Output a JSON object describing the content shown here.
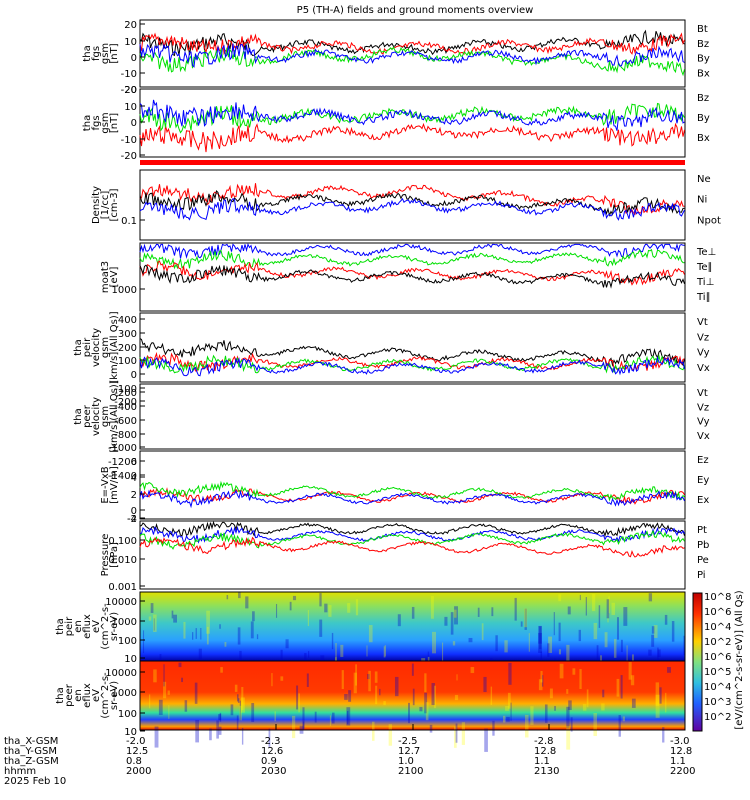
{
  "title": "P5 (TH-A) fields and ground moments overview",
  "colors": {
    "black": "#000000",
    "red": "#ff0000",
    "green": "#00e000",
    "blue": "#0000ff"
  },
  "panels": [
    {
      "id": "fgs",
      "ylabel": [
        "tha",
        "fgs",
        "gsm",
        "[nT]"
      ],
      "yticks": [
        "20",
        "10",
        "0",
        "-10",
        "-20"
      ],
      "legend": [
        {
          "text": "Bt",
          "color": "black"
        },
        {
          "text": "Bz",
          "color": "red"
        },
        {
          "text": "By",
          "color": "green"
        },
        {
          "text": "Bx",
          "color": "blue"
        }
      ]
    },
    {
      "id": "fgs_dsl",
      "ylabel": [
        "tha",
        "fgs",
        "gsm",
        "[nT]"
      ],
      "yticks": [
        "20",
        "10",
        "0",
        "-10",
        "-20"
      ],
      "legend": [
        {
          "text": "Bz",
          "color": "red"
        },
        {
          "text": "By",
          "color": "green"
        },
        {
          "text": "Bx",
          "color": "blue"
        }
      ]
    },
    {
      "id": "density",
      "ylabel": [
        "Density",
        "[1/cc]",
        "[cm-3]"
      ],
      "yticks": [
        "0.1"
      ],
      "legend": [
        {
          "text": "Ne",
          "color": "red"
        },
        {
          "text": "Ni",
          "color": "black"
        },
        {
          "text": "Npot",
          "color": "blue"
        }
      ]
    },
    {
      "id": "temp",
      "ylabel": [
        "moat3",
        "[eV]"
      ],
      "yticks": [
        "1000"
      ],
      "legend": [
        {
          "text": "Te⊥",
          "color": "red"
        },
        {
          "text": "Te∥",
          "color": "black"
        },
        {
          "text": "Ti⊥",
          "color": "blue"
        },
        {
          "text": "Ti∥",
          "color": "green"
        }
      ]
    },
    {
      "id": "vi",
      "ylabel": [
        "tha",
        "peir",
        "velocity",
        "gsm",
        "[km/s](All Qs)]"
      ],
      "yticks": [
        "400",
        "300",
        "200",
        "100",
        "0",
        "-100",
        "-200"
      ],
      "legend": [
        {
          "text": "Vt",
          "color": "black"
        },
        {
          "text": "Vz",
          "color": "red"
        },
        {
          "text": "Vy",
          "color": "green"
        },
        {
          "text": "Vx",
          "color": "blue"
        }
      ]
    },
    {
      "id": "ve",
      "ylabel": [
        "tha",
        "peer",
        "velocity",
        "gsm",
        "[km/s](All Qs)]"
      ],
      "yticks": [
        "-200",
        "-400",
        "-600",
        "-800",
        "-1000",
        "-1200",
        "-1400"
      ],
      "legend": [
        {
          "text": "Vt",
          "color": "black"
        },
        {
          "text": "Vz",
          "color": "red"
        },
        {
          "text": "Vy",
          "color": "green"
        },
        {
          "text": "Vx",
          "color": "blue"
        }
      ]
    },
    {
      "id": "efield",
      "ylabel": [
        "E=-VxB",
        "[mV/m]"
      ],
      "yticks": [
        "6",
        "4",
        "2",
        "0",
        "-2",
        "-4"
      ],
      "legend": [
        {
          "text": "Ez",
          "color": "red"
        },
        {
          "text": "Ey",
          "color": "green"
        },
        {
          "text": "Ex",
          "color": "blue"
        }
      ]
    },
    {
      "id": "pressure",
      "ylabel": [
        "Pressure",
        "[nPa]"
      ],
      "yticks": [
        "0.100",
        "0.010",
        "0.001"
      ],
      "legend": [
        {
          "text": "Pt",
          "color": "black"
        },
        {
          "text": "Pb",
          "color": "red"
        },
        {
          "text": "Pe",
          "color": "green"
        },
        {
          "text": "Pi",
          "color": "blue"
        }
      ]
    },
    {
      "id": "ion_spec",
      "ylabel": [
        "tha",
        "peir",
        "en",
        "eflux",
        "eV",
        "(cm^2-s-",
        "sr-eV)"
      ],
      "yticks": [
        "10000",
        "1000",
        "100",
        "10"
      ]
    },
    {
      "id": "el_spec",
      "ylabel": [
        "tha",
        "peer",
        "en",
        "eflux",
        "eV",
        "(cm^2-s-",
        "sr-eV)"
      ],
      "yticks": [
        "10000",
        "1000",
        "100",
        "10"
      ]
    }
  ],
  "colorbar": {
    "ticks": [
      "10^8",
      "10^6",
      "10^4",
      "10^2",
      "10^6",
      "10^5",
      "10^4",
      "10^3",
      "10^2"
    ],
    "label": "[eV/(cm^2-s-sr-eV)] (All Qs)"
  },
  "xaxis": {
    "rows": [
      {
        "label": "tha_X-GSM",
        "values": [
          "-2.0",
          "-2.3",
          "-2.5",
          "-2.8",
          "-3.0"
        ]
      },
      {
        "label": "tha_Y-GSM",
        "values": [
          "12.5",
          "12.6",
          "12.7",
          "12.8",
          "12.8"
        ]
      },
      {
        "label": "tha_Z-GSM",
        "values": [
          "0.8",
          "0.9",
          "1.0",
          "1.1",
          "1.1"
        ]
      },
      {
        "label": "hhmm",
        "values": [
          "2000",
          "2030",
          "2100",
          "2130",
          "2200"
        ]
      }
    ],
    "date": "2025 Feb 10"
  },
  "chart_data": {
    "type": "line",
    "title": "P5 (TH-A) fields and ground moments overview",
    "x": [
      "2000",
      "2030",
      "2100",
      "2130",
      "2200"
    ],
    "panels": [
      {
        "name": "fgs gsm",
        "ylim": [
          -25,
          25
        ],
        "series": [
          {
            "name": "Bt",
            "values": [
              15,
              14,
              11,
              10,
              8
            ]
          },
          {
            "name": "Bz",
            "values": [
              10,
              9,
              8,
              7,
              7
            ]
          },
          {
            "name": "By",
            "values": [
              -2,
              -3,
              2,
              -5,
              0
            ]
          },
          {
            "name": "Bx",
            "values": [
              3,
              2,
              1,
              0,
              -2
            ]
          }
        ]
      },
      {
        "name": "fgs gsm 2",
        "ylim": [
          -25,
          25
        ],
        "series": [
          {
            "name": "Bz",
            "values": [
              -5,
              -10,
              -6,
              -8,
              -12
            ]
          },
          {
            "name": "By",
            "values": [
              3,
              0,
              5,
              2,
              10
            ]
          },
          {
            "name": "Bx",
            "values": [
              6,
              5,
              3,
              4,
              3
            ]
          }
        ]
      },
      {
        "name": "Density",
        "series": [
          {
            "name": "Ne",
            "values": [
              0.18,
              0.14,
              0.22,
              0.2,
              0.16
            ]
          },
          {
            "name": "Ni",
            "values": [
              0.16,
              0.12,
              0.13,
              0.11,
              0.1
            ]
          },
          {
            "name": "Npot",
            "values": [
              0.12,
              0.09,
              0.1,
              0.08,
              0.12
            ]
          }
        ]
      },
      {
        "name": "moat3",
        "series": [
          {
            "name": "Te⊥",
            "values": [
              2000,
              1500,
              2300,
              2200,
              1800
            ]
          },
          {
            "name": "Te∥",
            "values": [
              1700,
              1400,
              2000,
              2000,
              1300
            ]
          },
          {
            "name": "Ti⊥",
            "values": [
              3400,
              3200,
              3600,
              3500,
              3300
            ]
          },
          {
            "name": "Ti∥",
            "values": [
              2800,
              2600,
              3100,
              3000,
              2900
            ]
          }
        ]
      },
      {
        "name": "peir velocity",
        "ylim": [
          -200,
          400
        ],
        "series": [
          {
            "name": "Vt",
            "values": [
              150,
              80,
              60,
              50,
              40
            ]
          },
          {
            "name": "Vz",
            "values": [
              40,
              10,
              0,
              -10,
              0
            ]
          },
          {
            "name": "Vy",
            "values": [
              20,
              30,
              10,
              0,
              20
            ]
          },
          {
            "name": "Vx",
            "values": [
              -20,
              -30,
              -10,
              0,
              -10
            ]
          }
        ]
      },
      {
        "name": "E=-VxB",
        "ylim": [
          -4,
          6
        ],
        "series": [
          {
            "name": "Ez",
            "values": [
              1,
              0.5,
              0,
              0.2,
              1
            ]
          },
          {
            "name": "Ey",
            "values": [
              2,
              1,
              1.2,
              0.5,
              0.5
            ]
          },
          {
            "name": "Ex",
            "values": [
              0,
              -1,
              -0.5,
              0,
              0
            ]
          }
        ]
      },
      {
        "name": "Pressure",
        "series": [
          {
            "name": "Pt",
            "values": [
              0.2,
              0.15,
              0.18,
              0.17,
              0.12
            ]
          },
          {
            "name": "Pb",
            "values": [
              0.08,
              0.06,
              0.07,
              0.03,
              0.05
            ]
          },
          {
            "name": "Pe",
            "values": [
              0.05,
              0.05,
              0.08,
              0.06,
              0.05
            ]
          },
          {
            "name": "Pi",
            "values": [
              0.07,
              0.06,
              0.09,
              0.08,
              0.07
            ]
          }
        ]
      }
    ]
  }
}
